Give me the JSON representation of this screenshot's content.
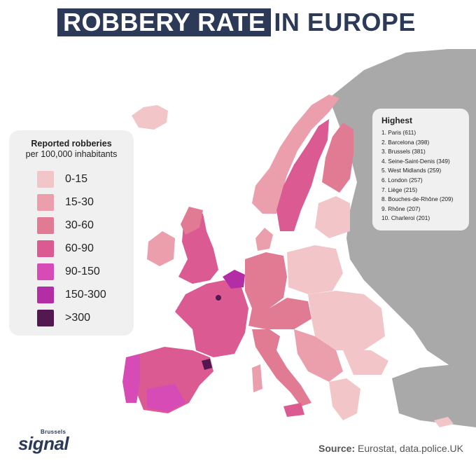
{
  "title": {
    "highlight": "ROBBERY RATE",
    "rest": "IN EUROPE"
  },
  "legend": {
    "title_line1": "Reported robberies",
    "title_line2": "per 100,000 inhabitants",
    "items": [
      {
        "label": "0-15",
        "color": "#f2c6c8"
      },
      {
        "label": "15-30",
        "color": "#eb9fac"
      },
      {
        "label": "30-60",
        "color": "#e17b94"
      },
      {
        "label": "60-90",
        "color": "#db5a92"
      },
      {
        "label": "90-150",
        "color": "#d64bb5"
      },
      {
        "label": "150-300",
        "color": "#b32ea5"
      },
      {
        "label": ">300",
        "color": "#531850"
      }
    ]
  },
  "highest": {
    "title": "Highest",
    "items": [
      "1. Paris (611)",
      "2. Barcelona (398)",
      "3. Brussels (381)",
      "4. Seine-Saint-Denis (349)",
      "5. West Midlands (259)",
      "6. London (257)",
      "7. Liège (215)",
      "8. Bouches-de-Rhône (209)",
      "9. Rhône (207)",
      "10. Charleroi (201)"
    ]
  },
  "source": {
    "label": "Source:",
    "text": "Eurostat, data.police.UK"
  },
  "logo": {
    "small": "Brussels",
    "big": "signal"
  },
  "colors": {
    "title_bg": "#2c3a58",
    "no_data": "#a9a9a9",
    "water": "#ffffff"
  }
}
